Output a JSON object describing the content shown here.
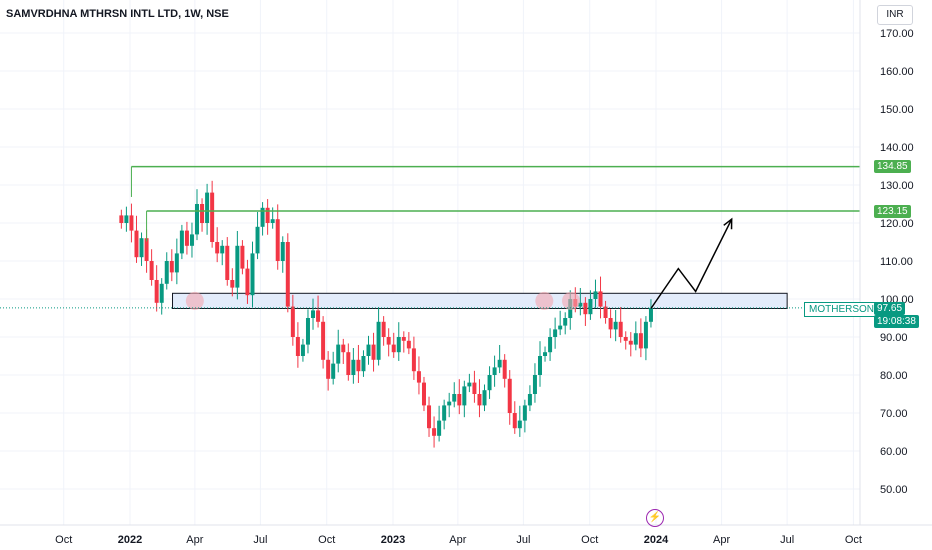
{
  "header": {
    "title": "SAMVRDHNA MTHRSN INTL LTD, 1W, NSE",
    "currency": "INR"
  },
  "colors": {
    "up": "#089981",
    "down": "#f23645",
    "level_line": "#4caf50",
    "zone_fill": "#e3ecfb",
    "zone_border": "#131722",
    "highlight": "#f4a7b0",
    "arrow": "#000000",
    "grid": "#f0f3fa",
    "axis_text": "#131722"
  },
  "chart_data": {
    "type": "candlestick",
    "y_axis": {
      "ticks": [
        50,
        60,
        70,
        80,
        90,
        100,
        110,
        120,
        130,
        140,
        150,
        160,
        170
      ],
      "tick_labels": [
        "50.00",
        "60.00",
        "70.00",
        "80.00",
        "90.00",
        "100.00",
        "110.00",
        "120.00",
        "130.00",
        "140.00",
        "150.00",
        "160.00",
        "170.00"
      ],
      "range": [
        42,
        177
      ]
    },
    "x_axis": {
      "labels": [
        {
          "text": "Oct",
          "date": "2021-10-01",
          "bold": false
        },
        {
          "text": "2022",
          "date": "2022-01-01",
          "bold": true
        },
        {
          "text": "Apr",
          "date": "2022-04-01",
          "bold": false
        },
        {
          "text": "Jul",
          "date": "2022-07-01",
          "bold": false
        },
        {
          "text": "Oct",
          "date": "2022-10-01",
          "bold": false
        },
        {
          "text": "2023",
          "date": "2023-01-01",
          "bold": true
        },
        {
          "text": "Apr",
          "date": "2023-04-01",
          "bold": false
        },
        {
          "text": "Jul",
          "date": "2023-07-01",
          "bold": false
        },
        {
          "text": "Oct",
          "date": "2023-10-01",
          "bold": false
        },
        {
          "text": "2024",
          "date": "2024-01-01",
          "bold": true
        },
        {
          "text": "Apr",
          "date": "2024-04-01",
          "bold": false
        },
        {
          "text": "Jul",
          "date": "2024-07-01",
          "bold": false
        },
        {
          "text": "Oct",
          "date": "2024-10-01",
          "bold": false
        }
      ]
    },
    "closes": [
      120,
      122,
      118,
      111,
      116,
      110,
      105,
      99,
      104,
      110,
      107,
      112,
      118,
      114,
      117,
      125,
      120,
      128,
      115,
      112,
      114,
      105,
      103,
      114,
      108,
      101,
      112,
      119,
      124,
      120,
      121,
      110,
      115,
      98,
      90,
      85,
      88,
      95,
      97,
      94,
      84,
      79,
      83,
      88,
      86,
      80,
      84,
      81,
      85,
      88,
      84,
      94,
      90,
      88,
      86,
      90,
      89,
      87,
      81,
      78,
      72,
      66,
      64,
      68,
      72,
      73,
      75,
      72,
      77,
      78,
      75,
      72,
      76,
      80,
      82,
      84,
      79,
      70,
      66,
      68,
      72,
      75,
      80,
      85,
      86,
      90,
      92,
      93,
      95,
      100,
      98,
      99,
      96,
      100,
      102,
      98,
      95,
      92,
      94,
      90,
      89,
      88,
      91,
      87,
      94,
      97.65
    ],
    "levels": [
      {
        "value": 134.85,
        "label": "134.85"
      },
      {
        "value": 123.15,
        "label": "123.15"
      }
    ],
    "zone": {
      "low": 97.5,
      "high": 101.5
    },
    "last_price": {
      "value": 97.65,
      "label": "97.65",
      "countdown": "19:08:38",
      "symbol": "MOTHERSON"
    },
    "projection": [
      {
        "date": "2023-12-25",
        "value": 97.5
      },
      {
        "date": "2024-02-01",
        "value": 108
      },
      {
        "date": "2024-02-25",
        "value": 102
      },
      {
        "date": "2024-04-15",
        "value": 121
      }
    ],
    "highlights": [
      {
        "date": "2022-04-01",
        "value": 99.5
      },
      {
        "date": "2023-07-30",
        "value": 99.5
      },
      {
        "date": "2023-09-05",
        "value": 99.5
      }
    ]
  }
}
